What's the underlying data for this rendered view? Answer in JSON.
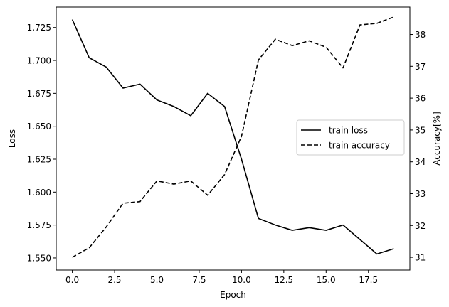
{
  "chart_data": {
    "type": "line",
    "title": "",
    "xlabel": "Epoch",
    "ylabel_left": "Loss",
    "ylabel_right": "Accuracy[%]",
    "xlim": [
      -0.95,
      19.95
    ],
    "ylim_left": [
      1.5408,
      1.7405
    ],
    "ylim_right": [
      30.6,
      38.86
    ],
    "x_ticks": [
      0.0,
      2.5,
      5.0,
      7.5,
      10.0,
      12.5,
      15.0,
      17.5
    ],
    "x_tick_labels": [
      "0.0",
      "2.5",
      "5.0",
      "7.5",
      "10.0",
      "12.5",
      "15.0",
      "17.5"
    ],
    "y_left_ticks": [
      1.55,
      1.575,
      1.6,
      1.625,
      1.65,
      1.675,
      1.7,
      1.725
    ],
    "y_left_tick_labels": [
      "1.550",
      "1.575",
      "1.600",
      "1.625",
      "1.650",
      "1.675",
      "1.700",
      "1.725"
    ],
    "y_right_ticks": [
      31,
      32,
      33,
      34,
      35,
      36,
      37,
      38
    ],
    "y_right_tick_labels": [
      "31",
      "32",
      "33",
      "34",
      "35",
      "36",
      "37",
      "38"
    ],
    "x": [
      0,
      1,
      2,
      3,
      4,
      5,
      6,
      7,
      8,
      9,
      10,
      11,
      12,
      13,
      14,
      15,
      16,
      17,
      18,
      19
    ],
    "series": [
      {
        "name": "train loss",
        "axis": "left",
        "style": "solid",
        "color": "#000000",
        "values": [
          1.731,
          1.702,
          1.695,
          1.679,
          1.682,
          1.67,
          1.665,
          1.658,
          1.675,
          1.665,
          1.625,
          1.58,
          1.575,
          1.571,
          1.573,
          1.571,
          1.575,
          1.564,
          1.553,
          1.557
        ]
      },
      {
        "name": "train accuracy",
        "axis": "right",
        "style": "dashed",
        "color": "#000000",
        "values": [
          31.0,
          31.3,
          31.95,
          32.7,
          32.75,
          33.4,
          33.3,
          33.4,
          32.95,
          33.6,
          34.8,
          37.2,
          37.85,
          37.65,
          37.8,
          37.6,
          36.95,
          38.3,
          38.35,
          38.55
        ]
      }
    ],
    "legend_position": "center-right",
    "grid": false
  }
}
